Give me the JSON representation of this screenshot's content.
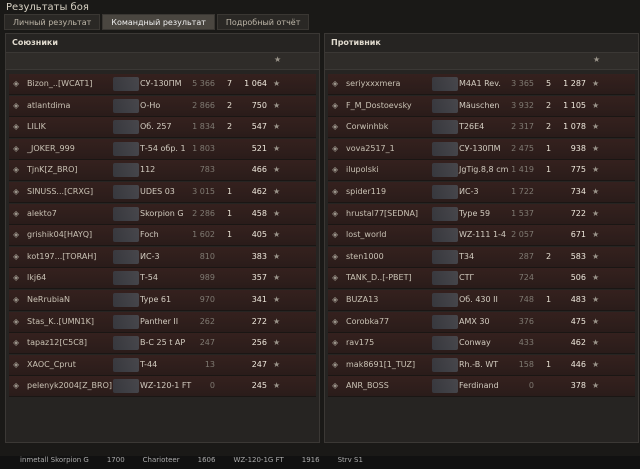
{
  "header": {
    "title": "Результаты боя",
    "tabs": [
      "Личный результат",
      "Командный результат",
      "Подробный отчёт"
    ]
  },
  "teams": [
    {
      "name": "Союзники",
      "players": [
        {
          "player": "Bizon_..[WCAT1]",
          "tank": "СУ-130ПМ",
          "damage": "5 366",
          "kills": "7",
          "xp": "1 064"
        },
        {
          "player": "atlantdima",
          "tank": "O-Ho",
          "damage": "2 866",
          "kills": "2",
          "xp": "750"
        },
        {
          "player": "LILIK",
          "tank": "Об. 257",
          "damage": "1 834",
          "kills": "2",
          "xp": "547"
        },
        {
          "player": "_JOKER_999",
          "tank": "Т-54 обр. 1",
          "damage": "1 803",
          "kills": null,
          "xp": "521"
        },
        {
          "player": "TjnK[Z_BRO]",
          "tank": "112",
          "damage": "783",
          "kills": null,
          "xp": "466"
        },
        {
          "player": "SINUSS...[CRXG]",
          "tank": "UDES 03",
          "damage": "3 015",
          "kills": "1",
          "xp": "462"
        },
        {
          "player": "alekto7",
          "tank": "Skorpion G",
          "damage": "2 286",
          "kills": "1",
          "xp": "458"
        },
        {
          "player": "grishik04[HAYQ]",
          "tank": "Foch",
          "damage": "1 602",
          "kills": "1",
          "xp": "405"
        },
        {
          "player": "kot197...[TORAH]",
          "tank": "ИС-3",
          "damage": "810",
          "kills": null,
          "xp": "383"
        },
        {
          "player": "lkj64",
          "tank": "Т-54",
          "damage": "989",
          "kills": null,
          "xp": "357"
        },
        {
          "player": "NeRrubiaN",
          "tank": "Type 61",
          "damage": "970",
          "kills": null,
          "xp": "341"
        },
        {
          "player": "Stas_K..[UMN1K]",
          "tank": "Panther II",
          "damage": "262",
          "kills": null,
          "xp": "272"
        },
        {
          "player": "tapaz12[C5C8]",
          "tank": "B-C 25 t AP",
          "damage": "247",
          "kills": null,
          "xp": "256"
        },
        {
          "player": "XAOC_Cprut",
          "tank": "T-44",
          "damage": "13",
          "kills": null,
          "xp": "247"
        },
        {
          "player": "pelenyk2004[Z_BRO]",
          "tank": "WZ-120-1 FT",
          "damage": "0",
          "kills": null,
          "xp": "245"
        }
      ]
    },
    {
      "name": "Противник",
      "players": [
        {
          "player": "seriyxxxmera",
          "tank": "M4A1 Rev.",
          "damage": "3 365",
          "kills": "5",
          "xp": "1 287"
        },
        {
          "player": "F_M_Dostoevsky",
          "tank": "Mäuschen",
          "damage": "3 932",
          "kills": "2",
          "xp": "1 105"
        },
        {
          "player": "Corwinhbk",
          "tank": "T26E4",
          "damage": "2 317",
          "kills": "2",
          "xp": "1 078"
        },
        {
          "player": "vova2517_1",
          "tank": "СУ-130ПМ",
          "damage": "2 475",
          "kills": "1",
          "xp": "938"
        },
        {
          "player": "ilupolski",
          "tank": "JgTig.8,8 cm",
          "damage": "1 419",
          "kills": "1",
          "xp": "775"
        },
        {
          "player": "spider119",
          "tank": "ИС-3",
          "damage": "1 722",
          "kills": null,
          "xp": "734"
        },
        {
          "player": "hrustal77[SEDNA]",
          "tank": "Type 59",
          "damage": "1 537",
          "kills": null,
          "xp": "722"
        },
        {
          "player": "lost_world",
          "tank": "WZ-111 1-4",
          "damage": "2 057",
          "kills": null,
          "xp": "671"
        },
        {
          "player": "sten1000",
          "tank": "T34",
          "damage": "287",
          "kills": "2",
          "xp": "583"
        },
        {
          "player": "TANK_D..[-PBET]",
          "tank": "СТГ",
          "damage": "724",
          "kills": null,
          "xp": "506"
        },
        {
          "player": "BUZA13",
          "tank": "Об. 430 II",
          "damage": "748",
          "kills": "1",
          "xp": "483"
        },
        {
          "player": "Corobka77",
          "tank": "AMX 30",
          "damage": "376",
          "kills": null,
          "xp": "475"
        },
        {
          "player": "rav175",
          "tank": "Conway",
          "damage": "433",
          "kills": null,
          "xp": "462"
        },
        {
          "player": "mak8691[1_TUZ]",
          "tank": "Rh.-B. WT",
          "damage": "158",
          "kills": "1",
          "xp": "446"
        },
        {
          "player": "ANR_BOSS",
          "tank": "Ferdinand",
          "damage": "0",
          "kills": null,
          "xp": "378"
        }
      ]
    }
  ],
  "footer": [
    "inmetall Skorpion G",
    "1700",
    "Charioteer",
    "1606",
    "WZ-120-1G FT",
    "1916",
    "Strv S1"
  ]
}
